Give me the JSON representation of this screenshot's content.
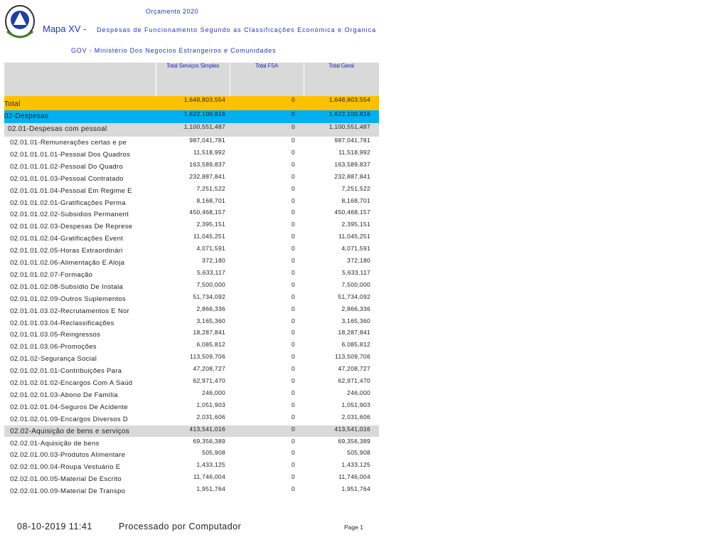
{
  "header": {
    "budget": "Orçamento 2020",
    "map": "Mapa XV -",
    "title": "Despesas de Funcionamento Segundo as Classificações Económica e Organica",
    "organization": "GOV - Ministério Dos Negocios Estrangeiros e Comunidades"
  },
  "table": {
    "columns": [
      "Total Serviços Simples",
      "Total FSA",
      "Total Geral"
    ],
    "rows": [
      [
        "Total",
        "1,648,803,554",
        "0",
        "1,648,803,554"
      ],
      [
        "02-Despesas",
        "1,622,100,816",
        "0",
        "1,622,100,816"
      ],
      [
        "02.01-Despesas com pessoal",
        "1,100,551,487",
        "0",
        "1,100,551,487"
      ],
      [
        "02.01.01-Remunerações certas e pe",
        "987,041,781",
        "0",
        "987,041,781"
      ],
      [
        "02.01.01.01.01-Pessoal Dos Quadros",
        "11,518,992",
        "0",
        "11,518,992"
      ],
      [
        "02.01.01.01.02-Pessoal Do Quadro",
        "163,589,837",
        "0",
        "163,589,837"
      ],
      [
        "02.01.01.01.03-Pessoal Contratado",
        "232,887,841",
        "0",
        "232,887,841"
      ],
      [
        "02.01.01.01.04-Pessoal Em Regime E",
        "7,251,522",
        "0",
        "7,251,522"
      ],
      [
        "02.01.01.02.01-Gratificações Perma",
        "8,168,701",
        "0",
        "8,168,701"
      ],
      [
        "02.01.01.02.02-Subsidios Permanent",
        "450,468,157",
        "0",
        "450,468,157"
      ],
      [
        "02.01.01.02.03-Despesas De Represe",
        "2,395,151",
        "0",
        "2,395,151"
      ],
      [
        "02.01.01.02.04-Gratificações Event",
        "11,045,251",
        "0",
        "11,045,251"
      ],
      [
        "02.01.01.02.05-Horas Extraordinári",
        "4,071,591",
        "0",
        "4,071,591"
      ],
      [
        "02.01.01.02.06-Alimentação E Aloja",
        "372,180",
        "0",
        "372,180"
      ],
      [
        "02.01.01.02.07-Formação",
        "5,633,117",
        "0",
        "5,633,117"
      ],
      [
        "02.01.01.02.08-Subsídio De Instala",
        "7,500,000",
        "0",
        "7,500,000"
      ],
      [
        "02.01.01.02.09-Outros Suplementos",
        "51,734,092",
        "0",
        "51,734,092"
      ],
      [
        "02.01.01.03.02-Recrutamentos E Nor",
        "2,866,336",
        "0",
        "2,866,336"
      ],
      [
        "02.01.01.03.04-Reclassificações",
        "3,165,360",
        "0",
        "3,165,360"
      ],
      [
        "02.01.01.03.05-Reingressos",
        "18,287,841",
        "0",
        "18,287,841"
      ],
      [
        "02.01.01.03.06-Promoções",
        "6,085,812",
        "0",
        "6,085,812"
      ],
      [
        "02.01.02-Segurança Social",
        "113,509,706",
        "0",
        "113,509,706"
      ],
      [
        "02.01.02.01.01-Contribuições Para",
        "47,208,727",
        "0",
        "47,208,727"
      ],
      [
        "02.01.02.01.02-Encargos Com A Saúd",
        "62,971,470",
        "0",
        "62,971,470"
      ],
      [
        "02.01.02.01.03-Abono De Família",
        "246,000",
        "0",
        "246,000"
      ],
      [
        "02.01.02.01.04-Seguros De Acidente",
        "1,051,903",
        "0",
        "1,051,903"
      ],
      [
        "02.01.02.01.09-Encargos Diversos D",
        "2,031,606",
        "0",
        "2,031,606"
      ],
      [
        "02.02-Aquisição de bens e serviços",
        "413,541,016",
        "0",
        "413,541,016"
      ],
      [
        "02.02.01-Aquisição de bens",
        "69,356,389",
        "0",
        "69,356,389"
      ],
      [
        "02.02.01.00.03-Produtos Alimentare",
        "505,908",
        "0",
        "505,908"
      ],
      [
        "02.02.01.00.04-Roupa Vestuário E",
        "1,433,125",
        "0",
        "1,433,125"
      ],
      [
        "02.02.01.00.05-Material De Escrito",
        "11,746,004",
        "0",
        "11,746,004"
      ],
      [
        "02.02.01.00.09-Material De Transpo",
        "1,951,764",
        "0",
        "1,951,764"
      ]
    ]
  },
  "footer": {
    "timestamp": "08-10-2019 11:41",
    "processed": "Processado por Computador",
    "page": "Page 1"
  }
}
